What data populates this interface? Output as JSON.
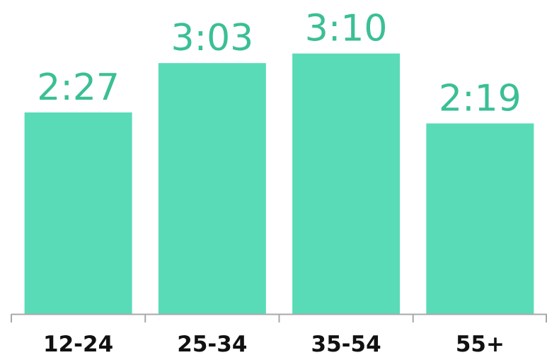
{
  "chart_data": {
    "type": "bar",
    "categories": [
      "12-24",
      "25-34",
      "35-54",
      "55+"
    ],
    "values": [
      147,
      183,
      190,
      139
    ],
    "value_labels": [
      "2:27",
      "3:03",
      "3:10",
      "2:19"
    ],
    "value_unit": "seconds",
    "ylim": [
      0,
      200
    ],
    "grid": false,
    "legend": "none",
    "title": "",
    "xlabel": "",
    "ylabel": ""
  },
  "colors": {
    "bar": "#5adbb8",
    "value_label": "#3bbf95",
    "category_label": "#111111",
    "axis": "#a8a8a8"
  }
}
